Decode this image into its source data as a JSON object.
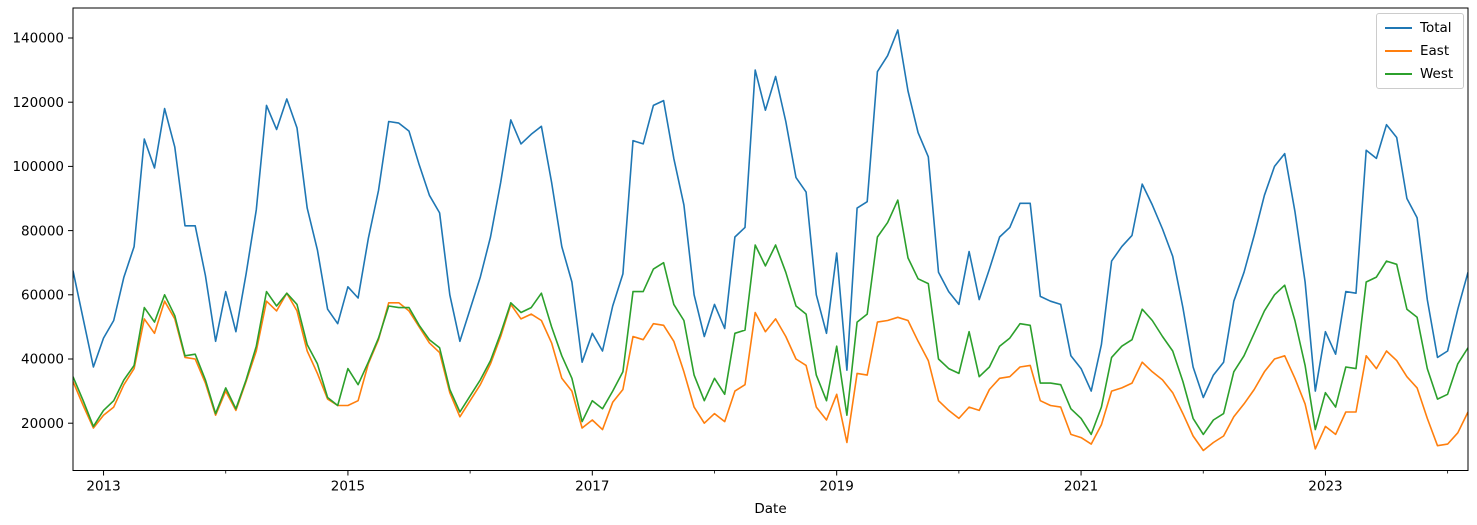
{
  "chart_data": {
    "type": "line",
    "title": "",
    "xlabel": "Date",
    "ylabel": "",
    "grid": false,
    "legend_position": "upper right",
    "x_start": "2012-10",
    "x_end": "2024-03",
    "frequency": "monthly",
    "n_points": 138,
    "ylim": [
      5000,
      149500
    ],
    "y_ticks": [
      20000,
      40000,
      60000,
      80000,
      100000,
      120000,
      140000
    ],
    "y_tick_labels": [
      "20000",
      "40000",
      "60000",
      "80000",
      "100000",
      "120000",
      "140000"
    ],
    "x_major_ticks": [
      {
        "label": "2013",
        "i": 3
      },
      {
        "label": "2015",
        "i": 27
      },
      {
        "label": "2017",
        "i": 51
      },
      {
        "label": "2019",
        "i": 75
      },
      {
        "label": "2021",
        "i": 99
      },
      {
        "label": "2023",
        "i": 123
      }
    ],
    "x_minor_tick_i": [
      15,
      39,
      63,
      87,
      111,
      135
    ],
    "series": [
      {
        "name": "Total",
        "color": "#1f77b4",
        "values": [
          67500,
          52500,
          37500,
          46500,
          52000,
          65500,
          75000,
          108500,
          99500,
          118000,
          106000,
          81500,
          81500,
          66000,
          45500,
          61000,
          48500,
          66500,
          86500,
          119000,
          111500,
          121000,
          112000,
          87000,
          74000,
          55500,
          51000,
          62500,
          59000,
          77500,
          92500,
          114000,
          113500,
          111000,
          100500,
          91000,
          85500,
          60000,
          45500,
          55500,
          65500,
          78000,
          95000,
          114500,
          107000,
          110000,
          112500,
          95000,
          75000,
          64000,
          39000,
          48000,
          42500,
          56500,
          66500,
          108000,
          107000,
          119000,
          120500,
          102500,
          88000,
          60000,
          47000,
          57000,
          49500,
          78000,
          81000,
          130000,
          117500,
          128000,
          114000,
          96500,
          92000,
          60000,
          48000,
          73000,
          36500,
          87000,
          89000,
          129500,
          134500,
          142500,
          123500,
          110500,
          103000,
          67000,
          61000,
          57000,
          73500,
          58500,
          68000,
          78000,
          81000,
          88500,
          88500,
          59500,
          58000,
          57000,
          41000,
          37000,
          30000,
          44500,
          70500,
          75000,
          78500,
          94500,
          88000,
          80500,
          72000,
          56000,
          37500,
          28000,
          35000,
          39000,
          58000,
          67000,
          78500,
          91000,
          100000,
          104000,
          86000,
          64000,
          30000,
          48500,
          41500,
          61000,
          60500,
          105000,
          102500,
          113000,
          109000,
          90000,
          84000,
          58500,
          40500,
          42500,
          55500,
          67000
        ]
      },
      {
        "name": "East",
        "color": "#ff7f0e",
        "values": [
          33000,
          25500,
          18500,
          22500,
          25000,
          32000,
          37000,
          52500,
          48000,
          58000,
          52500,
          40500,
          40000,
          32500,
          22500,
          30000,
          24000,
          33000,
          42500,
          58000,
          55000,
          60500,
          55000,
          42500,
          35500,
          27500,
          25500,
          25500,
          27000,
          38500,
          46000,
          57500,
          57500,
          55000,
          50000,
          45000,
          42000,
          29500,
          22000,
          27000,
          32000,
          38500,
          47000,
          57000,
          52500,
          54000,
          52000,
          45000,
          34000,
          30000,
          18500,
          21000,
          18000,
          26500,
          30500,
          47000,
          46000,
          51000,
          50500,
          45500,
          36000,
          25000,
          20000,
          23000,
          20500,
          30000,
          32000,
          54500,
          48500,
          52500,
          47000,
          40000,
          38000,
          25000,
          21000,
          29000,
          14000,
          35500,
          35000,
          51500,
          52000,
          53000,
          52000,
          45500,
          39500,
          27000,
          24000,
          21500,
          25000,
          24000,
          30500,
          34000,
          34500,
          37500,
          38000,
          27000,
          25500,
          25000,
          16500,
          15500,
          13500,
          19500,
          30000,
          31000,
          32500,
          39000,
          36000,
          33500,
          29500,
          23000,
          16000,
          11500,
          14000,
          16000,
          22000,
          26000,
          30500,
          36000,
          40000,
          41000,
          34000,
          26000,
          12000,
          19000,
          16500,
          23500,
          23500,
          41000,
          37000,
          42500,
          39500,
          34500,
          31000,
          21500,
          13000,
          13500,
          17000,
          23500
        ]
      },
      {
        "name": "West",
        "color": "#2ca02c",
        "values": [
          34500,
          27000,
          19000,
          24000,
          27000,
          33500,
          38000,
          56000,
          51500,
          60000,
          53500,
          41000,
          41500,
          33500,
          23000,
          31000,
          24500,
          33500,
          44000,
          61000,
          56500,
          60500,
          57000,
          44500,
          38500,
          28000,
          25500,
          37000,
          32000,
          39000,
          46500,
          56500,
          56000,
          56000,
          50500,
          46000,
          43500,
          30500,
          23500,
          28500,
          33500,
          39500,
          48000,
          57500,
          54500,
          56000,
          60500,
          50000,
          41000,
          34000,
          20500,
          27000,
          24500,
          30000,
          36000,
          61000,
          61000,
          68000,
          70000,
          57000,
          52000,
          35000,
          27000,
          34000,
          29000,
          48000,
          49000,
          75500,
          69000,
          75500,
          67000,
          56500,
          54000,
          35000,
          27000,
          44000,
          22500,
          51500,
          54000,
          78000,
          82500,
          89500,
          71500,
          65000,
          63500,
          40000,
          37000,
          35500,
          48500,
          34500,
          37500,
          44000,
          46500,
          51000,
          50500,
          32500,
          32500,
          32000,
          24500,
          21500,
          16500,
          25000,
          40500,
          44000,
          46000,
          55500,
          52000,
          47000,
          42500,
          33000,
          21500,
          16500,
          21000,
          23000,
          36000,
          41000,
          48000,
          55000,
          60000,
          63000,
          52000,
          38000,
          18000,
          29500,
          25000,
          37500,
          37000,
          64000,
          65500,
          70500,
          69500,
          55500,
          53000,
          37000,
          27500,
          29000,
          38500,
          43500
        ]
      }
    ]
  }
}
